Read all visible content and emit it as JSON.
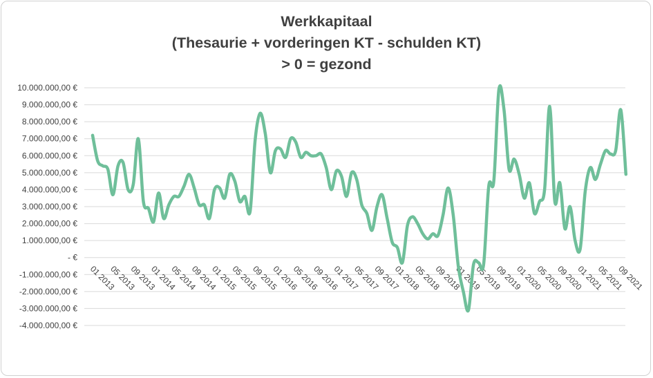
{
  "chart_data": {
    "type": "line",
    "title_lines": [
      "Werkkapitaal",
      "(Thesaurie + vorderingen KT - schulden KT)",
      "> 0 = gezond"
    ],
    "xlabel": "",
    "ylabel": "",
    "ylim": [
      -4000000,
      10000000
    ],
    "y_ticks": [
      {
        "value": 10000000,
        "label": "10.000.000,00 €"
      },
      {
        "value": 9000000,
        "label": "9.000.000,00 €"
      },
      {
        "value": 8000000,
        "label": "8.000.000,00 €"
      },
      {
        "value": 7000000,
        "label": "7.000.000,00 €"
      },
      {
        "value": 6000000,
        "label": "6.000.000,00 €"
      },
      {
        "value": 5000000,
        "label": "5.000.000,00 €"
      },
      {
        "value": 4000000,
        "label": "4.000.000,00 €"
      },
      {
        "value": 3000000,
        "label": "3.000.000,00 €"
      },
      {
        "value": 2000000,
        "label": "2.000.000,00 €"
      },
      {
        "value": 1000000,
        "label": "1.000.000,00 €"
      },
      {
        "value": 0,
        "label": "-   €"
      },
      {
        "value": -1000000,
        "label": "-1.000.000,00 €"
      },
      {
        "value": -2000000,
        "label": "-2.000.000,00 €"
      },
      {
        "value": -3000000,
        "label": "-3.000.000,00 €"
      },
      {
        "value": -4000000,
        "label": "-4.000.000,00 €"
      }
    ],
    "x_ticks": [
      {
        "index": 0,
        "label": "01 2013"
      },
      {
        "index": 4,
        "label": "05 2013"
      },
      {
        "index": 8,
        "label": "09 2013"
      },
      {
        "index": 12,
        "label": "01 2014"
      },
      {
        "index": 16,
        "label": "05 2014"
      },
      {
        "index": 20,
        "label": "09 2014"
      },
      {
        "index": 24,
        "label": "01 2015"
      },
      {
        "index": 28,
        "label": "05 2015"
      },
      {
        "index": 32,
        "label": "09 2015"
      },
      {
        "index": 36,
        "label": "01 2016"
      },
      {
        "index": 40,
        "label": "05 2016"
      },
      {
        "index": 44,
        "label": "09 2016"
      },
      {
        "index": 48,
        "label": "01 2017"
      },
      {
        "index": 52,
        "label": "05 2017"
      },
      {
        "index": 56,
        "label": "09 2017"
      },
      {
        "index": 60,
        "label": "01 2018"
      },
      {
        "index": 64,
        "label": "05 2018"
      },
      {
        "index": 68,
        "label": "09 2018"
      },
      {
        "index": 72,
        "label": "01 2019"
      },
      {
        "index": 76,
        "label": "05 2019"
      },
      {
        "index": 80,
        "label": "09 2019"
      },
      {
        "index": 84,
        "label": "01 2020"
      },
      {
        "index": 88,
        "label": "05 2020"
      },
      {
        "index": 92,
        "label": "09 2020"
      },
      {
        "index": 96,
        "label": "01 2021"
      },
      {
        "index": 100,
        "label": "05 2021"
      },
      {
        "index": 104,
        "label": "09 2021"
      }
    ],
    "n_points": 106,
    "grid": true,
    "legend": "none",
    "line_color": "#6fbf9a",
    "series": [
      {
        "values": [
          7200000,
          5700000,
          5400000,
          5200000,
          3700000,
          5400000,
          5600000,
          4000000,
          4300000,
          7000000,
          3300000,
          2900000,
          2100000,
          3800000,
          2300000,
          3100000,
          3600000,
          3600000,
          4200000,
          4900000,
          4100000,
          3100000,
          3100000,
          2300000,
          4000000,
          4100000,
          3500000,
          4900000,
          4500000,
          3300000,
          3600000,
          2700000,
          6900000,
          8500000,
          7300000,
          5000000,
          6300000,
          6400000,
          5900000,
          7000000,
          6800000,
          5900000,
          6200000,
          6000000,
          6000000,
          6100000,
          5300000,
          4000000,
          5100000,
          4800000,
          3600000,
          5000000,
          4600000,
          3100000,
          2600000,
          1600000,
          3000000,
          3700000,
          2300000,
          900000,
          600000,
          -300000,
          1900000,
          2400000,
          2000000,
          1400000,
          1100000,
          1400000,
          1300000,
          2500000,
          4100000,
          2500000,
          -500000,
          -2000000,
          -3100000,
          -400000,
          -300000,
          -400000,
          4200000,
          4500000,
          9900000,
          8700000,
          5200000,
          5800000,
          4900000,
          3500000,
          4400000,
          2600000,
          3300000,
          4000000,
          8900000,
          3300000,
          4400000,
          1700000,
          3000000,
          1000000,
          500000,
          3900000,
          5300000,
          4600000,
          5500000,
          6300000,
          6100000,
          6300000,
          8700000,
          4900000
        ]
      }
    ]
  }
}
